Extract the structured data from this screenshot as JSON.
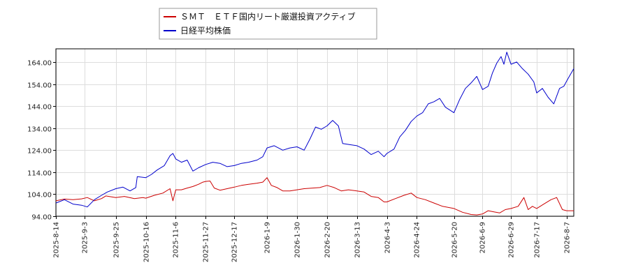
{
  "chart_data": {
    "type": "line",
    "title": "",
    "xlabel": "",
    "ylabel": "",
    "grid": true,
    "legend_placement": "top-left, above plot",
    "y_axis": {
      "range": [
        94,
        170
      ],
      "ticks": [
        "94.00",
        "104.00",
        "114.00",
        "124.00",
        "134.00",
        "144.00",
        "154.00",
        "164.00"
      ],
      "tick_values": [
        94,
        104,
        114,
        124,
        134,
        144,
        154,
        164
      ]
    },
    "x_axis": {
      "range": [
        "2025-08-14",
        "2026-08-12"
      ],
      "ticks": [
        "2025-8-14",
        "2025-9-3",
        "2025-9-25",
        "2025-10-16",
        "2025-11-6",
        "2025-11-27",
        "2025-12-17",
        "2026-1-9",
        "2026-1-30",
        "2026-2-20",
        "2026-3-13",
        "2026-4-3",
        "2026-4-24",
        "2026-5-20",
        "2026-6-9",
        "2026-6-29",
        "2026-7-17",
        "2026-8-7"
      ],
      "tick_dates": [
        "2025-08-14",
        "2025-09-03",
        "2025-09-25",
        "2025-10-16",
        "2025-11-06",
        "2025-11-27",
        "2025-12-17",
        "2026-01-09",
        "2026-01-30",
        "2026-02-20",
        "2026-03-13",
        "2026-04-03",
        "2026-04-24",
        "2026-05-20",
        "2026-06-09",
        "2026-06-29",
        "2026-07-17",
        "2026-08-07"
      ]
    },
    "series": [
      {
        "name": "ＳＭＴ　ＥＴＦ国内リート厳選投資アクティブ",
        "color": "#cc0000",
        "points": [
          [
            "2025-08-14",
            101.0
          ],
          [
            "2025-08-20",
            101.8
          ],
          [
            "2025-08-26",
            101.5
          ],
          [
            "2025-09-01",
            101.9
          ],
          [
            "2025-09-05",
            102.5
          ],
          [
            "2025-09-10",
            101.0
          ],
          [
            "2025-09-15",
            102.0
          ],
          [
            "2025-09-18",
            103.2
          ],
          [
            "2025-09-22",
            102.8
          ],
          [
            "2025-09-25",
            102.5
          ],
          [
            "2025-10-01",
            103.0
          ],
          [
            "2025-10-08",
            102.0
          ],
          [
            "2025-10-14",
            102.5
          ],
          [
            "2025-10-16",
            102.2
          ],
          [
            "2025-10-22",
            103.5
          ],
          [
            "2025-10-28",
            104.5
          ],
          [
            "2025-11-02",
            106.5
          ],
          [
            "2025-11-04",
            101.0
          ],
          [
            "2025-11-06",
            106.0
          ],
          [
            "2025-11-10",
            106.0
          ],
          [
            "2025-11-14",
            106.8
          ],
          [
            "2025-11-18",
            107.5
          ],
          [
            "2025-11-22",
            108.5
          ],
          [
            "2025-11-25",
            109.5
          ],
          [
            "2025-11-27",
            109.8
          ],
          [
            "2025-11-30",
            110.0
          ],
          [
            "2025-12-03",
            106.8
          ],
          [
            "2025-12-07",
            105.8
          ],
          [
            "2025-12-12",
            106.5
          ],
          [
            "2025-12-17",
            107.2
          ],
          [
            "2025-12-22",
            108.0
          ],
          [
            "2025-12-27",
            108.5
          ],
          [
            "2026-01-02",
            109.0
          ],
          [
            "2026-01-06",
            109.5
          ],
          [
            "2026-01-09",
            111.5
          ],
          [
            "2026-01-12",
            108.0
          ],
          [
            "2026-01-16",
            107.0
          ],
          [
            "2026-01-20",
            105.5
          ],
          [
            "2026-01-25",
            105.5
          ],
          [
            "2026-01-30",
            106.0
          ],
          [
            "2026-02-04",
            106.5
          ],
          [
            "2026-02-10",
            106.8
          ],
          [
            "2026-02-15",
            107.0
          ],
          [
            "2026-02-20",
            108.0
          ],
          [
            "2026-02-25",
            107.0
          ],
          [
            "2026-03-02",
            105.5
          ],
          [
            "2026-03-07",
            106.0
          ],
          [
            "2026-03-13",
            105.5
          ],
          [
            "2026-03-18",
            105.0
          ],
          [
            "2026-03-23",
            103.0
          ],
          [
            "2026-03-28",
            102.5
          ],
          [
            "2026-04-01",
            100.5
          ],
          [
            "2026-04-03",
            100.5
          ],
          [
            "2026-04-09",
            102.0
          ],
          [
            "2026-04-15",
            103.5
          ],
          [
            "2026-04-20",
            104.5
          ],
          [
            "2026-04-24",
            102.5
          ],
          [
            "2026-04-30",
            101.5
          ],
          [
            "2026-05-06",
            100.0
          ],
          [
            "2026-05-12",
            98.5
          ],
          [
            "2026-05-20",
            97.5
          ],
          [
            "2026-05-26",
            95.8
          ],
          [
            "2026-06-01",
            94.8
          ],
          [
            "2026-06-05",
            94.6
          ],
          [
            "2026-06-09",
            95.0
          ],
          [
            "2026-06-13",
            96.5
          ],
          [
            "2026-06-17",
            96.0
          ],
          [
            "2026-06-21",
            95.5
          ],
          [
            "2026-06-25",
            97.0
          ],
          [
            "2026-06-29",
            97.5
          ],
          [
            "2026-07-04",
            98.5
          ],
          [
            "2026-07-08",
            102.5
          ],
          [
            "2026-07-11",
            97.0
          ],
          [
            "2026-07-14",
            98.5
          ],
          [
            "2026-07-17",
            97.5
          ],
          [
            "2026-07-22",
            99.5
          ],
          [
            "2026-07-27",
            101.5
          ],
          [
            "2026-07-31",
            102.5
          ],
          [
            "2026-08-04",
            97.0
          ],
          [
            "2026-08-07",
            96.5
          ],
          [
            "2026-08-12",
            96.5
          ]
        ]
      },
      {
        "name": "日経平均株価",
        "color": "#0000cc",
        "points": [
          [
            "2025-08-14",
            100.0
          ],
          [
            "2025-08-20",
            101.5
          ],
          [
            "2025-08-26",
            99.5
          ],
          [
            "2025-09-01",
            99.0
          ],
          [
            "2025-09-05",
            98.2
          ],
          [
            "2025-09-10",
            101.5
          ],
          [
            "2025-09-15",
            103.5
          ],
          [
            "2025-09-19",
            105.0
          ],
          [
            "2025-09-25",
            106.5
          ],
          [
            "2025-09-30",
            107.2
          ],
          [
            "2025-10-05",
            105.5
          ],
          [
            "2025-10-09",
            107.0
          ],
          [
            "2025-10-10",
            112.0
          ],
          [
            "2025-10-16",
            111.5
          ],
          [
            "2025-10-20",
            113.0
          ],
          [
            "2025-10-24",
            115.0
          ],
          [
            "2025-10-29",
            117.0
          ],
          [
            "2025-11-02",
            121.5
          ],
          [
            "2025-11-04",
            122.5
          ],
          [
            "2025-11-06",
            120.0
          ],
          [
            "2025-11-10",
            118.5
          ],
          [
            "2025-11-14",
            119.5
          ],
          [
            "2025-11-18",
            114.5
          ],
          [
            "2025-11-22",
            116.0
          ],
          [
            "2025-11-27",
            117.5
          ],
          [
            "2025-12-02",
            118.5
          ],
          [
            "2025-12-07",
            118.0
          ],
          [
            "2025-12-12",
            116.5
          ],
          [
            "2025-12-17",
            117.0
          ],
          [
            "2025-12-22",
            118.0
          ],
          [
            "2025-12-27",
            118.5
          ],
          [
            "2026-01-02",
            119.5
          ],
          [
            "2026-01-06",
            121.0
          ],
          [
            "2026-01-09",
            125.0
          ],
          [
            "2026-01-14",
            126.0
          ],
          [
            "2026-01-20",
            124.0
          ],
          [
            "2026-01-25",
            125.0
          ],
          [
            "2026-01-30",
            125.5
          ],
          [
            "2026-02-04",
            124.0
          ],
          [
            "2026-02-08",
            129.0
          ],
          [
            "2026-02-12",
            134.5
          ],
          [
            "2026-02-16",
            133.5
          ],
          [
            "2026-02-20",
            135.0
          ],
          [
            "2026-02-24",
            137.5
          ],
          [
            "2026-02-28",
            135.0
          ],
          [
            "2026-03-03",
            127.0
          ],
          [
            "2026-03-08",
            126.5
          ],
          [
            "2026-03-13",
            126.0
          ],
          [
            "2026-03-18",
            124.5
          ],
          [
            "2026-03-23",
            122.0
          ],
          [
            "2026-03-28",
            123.5
          ],
          [
            "2026-04-01",
            121.0
          ],
          [
            "2026-04-03",
            122.5
          ],
          [
            "2026-04-08",
            124.5
          ],
          [
            "2026-04-12",
            130.0
          ],
          [
            "2026-04-16",
            133.0
          ],
          [
            "2026-04-20",
            137.0
          ],
          [
            "2026-04-24",
            139.5
          ],
          [
            "2026-04-28",
            141.0
          ],
          [
            "2026-05-02",
            145.0
          ],
          [
            "2026-05-06",
            146.0
          ],
          [
            "2026-05-10",
            147.5
          ],
          [
            "2026-05-14",
            143.5
          ],
          [
            "2026-05-20",
            141.0
          ],
          [
            "2026-05-24",
            147.0
          ],
          [
            "2026-05-28",
            152.0
          ],
          [
            "2026-06-01",
            154.5
          ],
          [
            "2026-06-05",
            157.5
          ],
          [
            "2026-06-09",
            151.5
          ],
          [
            "2026-06-13",
            153.0
          ],
          [
            "2026-06-16",
            159.0
          ],
          [
            "2026-06-19",
            163.5
          ],
          [
            "2026-06-22",
            166.5
          ],
          [
            "2026-06-24",
            163.0
          ],
          [
            "2026-06-26",
            168.5
          ],
          [
            "2026-06-29",
            163.0
          ],
          [
            "2026-07-03",
            164.0
          ],
          [
            "2026-07-07",
            161.0
          ],
          [
            "2026-07-11",
            158.5
          ],
          [
            "2026-07-15",
            155.0
          ],
          [
            "2026-07-17",
            150.0
          ],
          [
            "2026-07-21",
            152.0
          ],
          [
            "2026-07-25",
            148.0
          ],
          [
            "2026-07-29",
            145.0
          ],
          [
            "2026-08-02",
            152.0
          ],
          [
            "2026-08-05",
            153.0
          ],
          [
            "2026-08-08",
            156.5
          ],
          [
            "2026-08-12",
            161.0
          ]
        ]
      }
    ]
  }
}
